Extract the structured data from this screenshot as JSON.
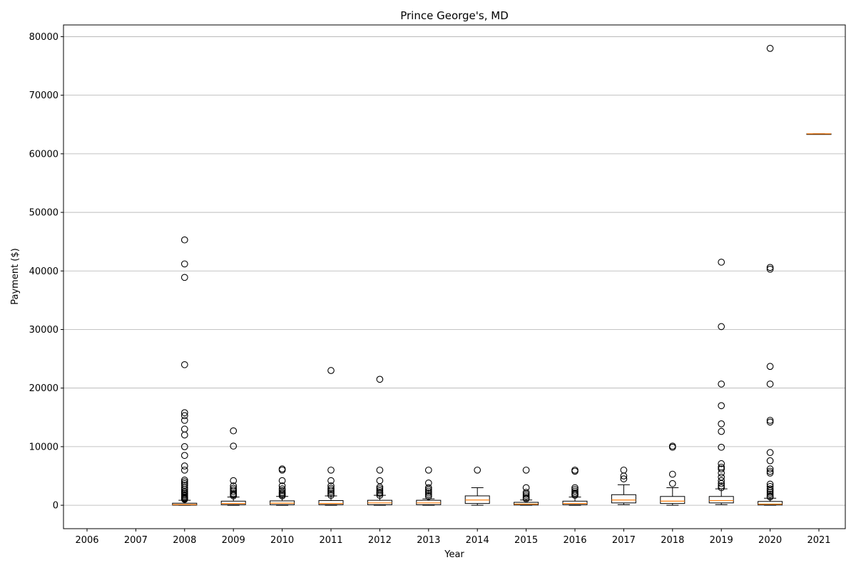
{
  "chart_data": {
    "type": "box",
    "title": "Prince George's, MD",
    "xlabel": "Year",
    "ylabel": "Payment ($)",
    "categories": [
      "2006",
      "2007",
      "2008",
      "2009",
      "2010",
      "2011",
      "2012",
      "2013",
      "2014",
      "2015",
      "2016",
      "2017",
      "2018",
      "2019",
      "2020",
      "2021"
    ],
    "ylim": [
      -4000,
      82000
    ],
    "yticks": [
      0,
      10000,
      20000,
      30000,
      40000,
      50000,
      60000,
      70000,
      80000
    ],
    "grid": "horizontal",
    "colors": {
      "box_edge": "#000000",
      "median": "#ff7f0e",
      "grid": "#b0b0b0",
      "flier": "#000000"
    },
    "boxes": [
      {
        "x": "2006",
        "empty": true
      },
      {
        "x": "2007",
        "empty": true
      },
      {
        "x": "2008",
        "whislo": 0,
        "q1": 20,
        "med": 120,
        "q3": 350,
        "whishi": 850,
        "fliers": [
          45300,
          41200,
          38900,
          24000,
          15800,
          15300,
          14500,
          13000,
          12000,
          10000,
          8500,
          6700,
          6000,
          4300,
          4000,
          3700,
          3400,
          3000,
          2700,
          2400,
          2200,
          2000,
          1800,
          1600,
          1400,
          1300,
          1200,
          1100,
          1000
        ]
      },
      {
        "x": "2009",
        "whislo": 0,
        "q1": 100,
        "med": 300,
        "q3": 700,
        "whishi": 1400,
        "fliers": [
          12700,
          10100,
          4200,
          3300,
          2900,
          2600,
          2300,
          2000,
          1800,
          1600
        ]
      },
      {
        "x": "2010",
        "whislo": 0,
        "q1": 100,
        "med": 350,
        "q3": 750,
        "whishi": 1500,
        "fliers": [
          6200,
          6000,
          4200,
          3300,
          2800,
          2500,
          2200,
          2000,
          1800,
          1600
        ]
      },
      {
        "x": "2011",
        "whislo": 0,
        "q1": 100,
        "med": 300,
        "q3": 800,
        "whishi": 1600,
        "fliers": [
          23000,
          6000,
          4200,
          3300,
          2900,
          2600,
          2300,
          2000,
          1700
        ]
      },
      {
        "x": "2012",
        "whislo": 0,
        "q1": 100,
        "med": 400,
        "q3": 850,
        "whishi": 1700,
        "fliers": [
          21500,
          6000,
          4200,
          3100,
          2800,
          2500,
          2200,
          2000,
          1700
        ]
      },
      {
        "x": "2013",
        "whislo": 0,
        "q1": 100,
        "med": 400,
        "q3": 850,
        "whishi": 1100,
        "fliers": [
          6000,
          3800,
          3000,
          2700,
          2400,
          2100,
          1800,
          1500
        ]
      },
      {
        "x": "2014",
        "whislo": 0,
        "q1": 300,
        "med": 900,
        "q3": 1600,
        "whishi": 3000,
        "fliers": [
          6000
        ]
      },
      {
        "x": "2015",
        "whislo": 0,
        "q1": 50,
        "med": 200,
        "q3": 500,
        "whishi": 900,
        "fliers": [
          6000,
          3000,
          2200,
          1900,
          1600,
          1300,
          1100
        ]
      },
      {
        "x": "2016",
        "whislo": 0,
        "q1": 100,
        "med": 300,
        "q3": 700,
        "whishi": 1400,
        "fliers": [
          6000,
          5800,
          3000,
          2700,
          2400,
          2100,
          1900,
          1700
        ]
      },
      {
        "x": "2017",
        "whislo": 100,
        "q1": 400,
        "med": 900,
        "q3": 1800,
        "whishi": 3500,
        "fliers": [
          6000,
          5000,
          4500
        ]
      },
      {
        "x": "2018",
        "whislo": 0,
        "q1": 300,
        "med": 700,
        "q3": 1500,
        "whishi": 3000,
        "fliers": [
          10100,
          9900,
          5300,
          3700
        ]
      },
      {
        "x": "2019",
        "whislo": 100,
        "q1": 400,
        "med": 800,
        "q3": 1500,
        "whishi": 2800,
        "fliers": [
          41500,
          30500,
          20700,
          17000,
          13900,
          12600,
          9900,
          7100,
          6500,
          6200,
          5500,
          4800,
          4200,
          3700,
          3300,
          3000
        ]
      },
      {
        "x": "2020",
        "whislo": 0,
        "q1": 50,
        "med": 200,
        "q3": 650,
        "whishi": 1200,
        "fliers": [
          78000,
          40600,
          40300,
          23700,
          20700,
          14500,
          14200,
          9000,
          7600,
          6200,
          5800,
          5500,
          3600,
          3200,
          2800,
          2500,
          2200,
          1900,
          1600,
          1400
        ]
      },
      {
        "x": "2021",
        "whislo": 63400,
        "q1": 63400,
        "med": 63400,
        "q3": 63400,
        "whishi": 63400,
        "fliers": []
      }
    ]
  }
}
